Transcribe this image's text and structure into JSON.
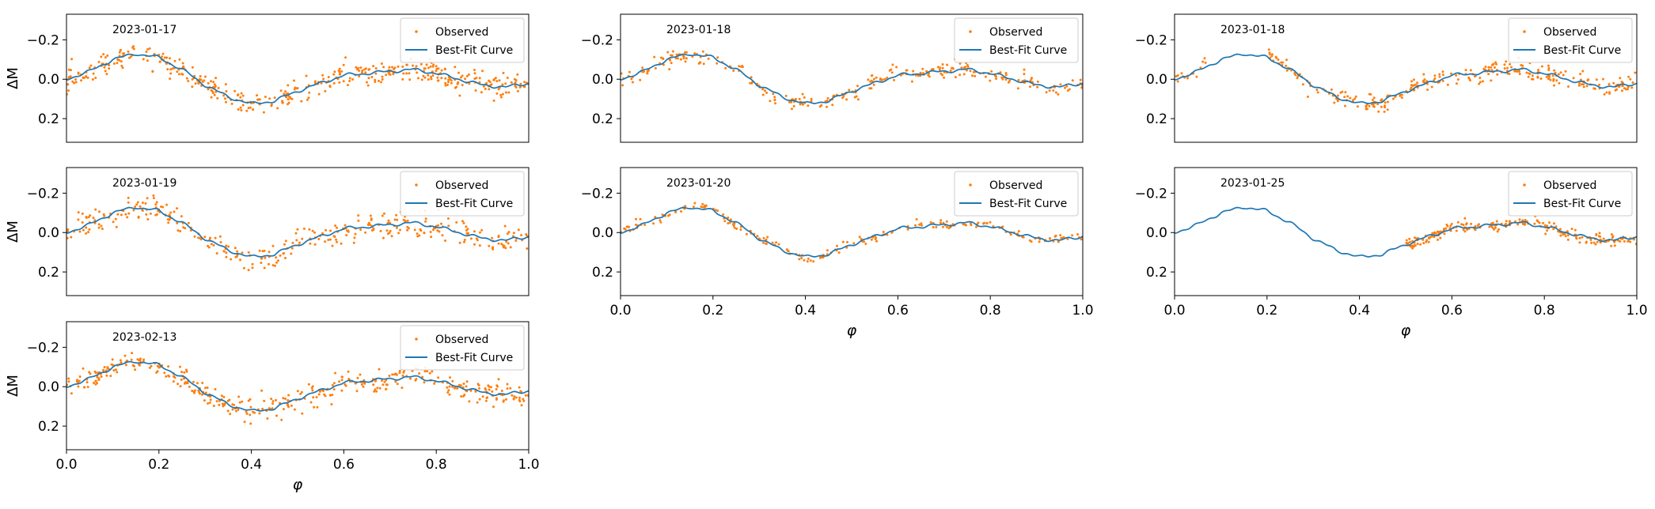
{
  "chart_data": [
    {
      "type": "scatter",
      "annotation": "2023-01-17",
      "xlabel": "",
      "ylabel": "ΔM",
      "xlim": [
        0,
        1
      ],
      "ylim": [
        0.32,
        -0.33
      ],
      "yticks": [
        "−0.2",
        "0.0",
        "0.2"
      ],
      "xticks": [],
      "legend": {
        "placement": "upper-right",
        "entries": [
          "Observed",
          "Best-Fit Curve"
        ]
      },
      "coverage": [
        0.0,
        1.0
      ],
      "noise": 0.028,
      "n_points": 430,
      "x_label_visible": false
    },
    {
      "type": "scatter",
      "annotation": "2023-01-18",
      "xlabel": "",
      "ylabel": "",
      "xlim": [
        0,
        1
      ],
      "ylim": [
        0.32,
        -0.33
      ],
      "yticks": [
        "−0.2",
        "0.0",
        "0.2"
      ],
      "xticks": [],
      "legend": {
        "placement": "upper-right",
        "entries": [
          "Observed",
          "Best-Fit Curve"
        ]
      },
      "coverage": [
        0.0,
        1.0
      ],
      "noise": 0.02,
      "n_points": 280
    },
    {
      "type": "scatter",
      "annotation": "2023-01-18",
      "xlabel": "",
      "ylabel": "",
      "xlim": [
        0,
        1
      ],
      "ylim": [
        0.32,
        -0.33
      ],
      "yticks": [
        "−0.2",
        "0.0",
        "0.2"
      ],
      "xticks": [],
      "legend": {
        "placement": "upper-right",
        "entries": [
          "Observed",
          "Best-Fit Curve"
        ]
      },
      "coverage": [
        0.0,
        0.07,
        0.2,
        1.0
      ],
      "noise": 0.022,
      "n_points": 300
    },
    {
      "type": "scatter",
      "annotation": "2023-01-19",
      "xlabel": "",
      "ylabel": "ΔM",
      "xlim": [
        0,
        1
      ],
      "ylim": [
        0.32,
        -0.33
      ],
      "yticks": [
        "−0.2",
        "0.0",
        "0.2"
      ],
      "xticks": [],
      "legend": {
        "placement": "upper-right",
        "entries": [
          "Observed",
          "Best-Fit Curve"
        ]
      },
      "coverage": [
        0.0,
        1.0
      ],
      "noise": 0.032,
      "n_points": 330
    },
    {
      "type": "scatter",
      "annotation": "2023-01-20",
      "xlabel": "φ",
      "ylabel": "",
      "xlim": [
        0,
        1
      ],
      "ylim": [
        0.32,
        -0.33
      ],
      "yticks": [
        "−0.2",
        "0.0",
        "0.2"
      ],
      "xticks": [
        "0.0",
        "0.2",
        "0.4",
        "0.6",
        "0.8",
        "1.0"
      ],
      "legend": {
        "placement": "upper-right",
        "entries": [
          "Observed",
          "Best-Fit Curve"
        ]
      },
      "coverage": [
        0.0,
        1.0
      ],
      "noise": 0.01,
      "n_points": 200
    },
    {
      "type": "scatter",
      "annotation": "2023-01-25",
      "xlabel": "φ",
      "ylabel": "",
      "xlim": [
        0,
        1
      ],
      "ylim": [
        0.32,
        -0.33
      ],
      "yticks": [
        "−0.2",
        "0.0",
        "0.2"
      ],
      "xticks": [
        "0.0",
        "0.2",
        "0.4",
        "0.6",
        "0.8",
        "1.0"
      ],
      "legend": {
        "placement": "upper-right",
        "entries": [
          "Observed",
          "Best-Fit Curve"
        ]
      },
      "coverage": [
        0.5,
        1.0
      ],
      "noise": 0.015,
      "n_points": 210
    },
    {
      "type": "scatter",
      "annotation": "2023-02-13",
      "xlabel": "φ",
      "ylabel": "ΔM",
      "xlim": [
        0,
        1
      ],
      "ylim": [
        0.32,
        -0.33
      ],
      "yticks": [
        "−0.2",
        "0.0",
        "0.2"
      ],
      "xticks": [
        "0.0",
        "0.2",
        "0.4",
        "0.6",
        "0.8",
        "1.0"
      ],
      "legend": {
        "placement": "upper-right",
        "entries": [
          "Observed",
          "Best-Fit Curve"
        ]
      },
      "coverage": [
        0.0,
        1.0
      ],
      "noise": 0.03,
      "n_points": 400
    }
  ],
  "best_fit_curve": {
    "phase": [
      0.0,
      0.05,
      0.1,
      0.15,
      0.2,
      0.25,
      0.3,
      0.35,
      0.4,
      0.45,
      0.5,
      0.55,
      0.6,
      0.65,
      0.7,
      0.75,
      0.8,
      0.85,
      0.9,
      0.95,
      1.0
    ],
    "delta_m": [
      0.0,
      -0.04,
      -0.1,
      -0.13,
      -0.11,
      -0.05,
      0.03,
      0.09,
      0.125,
      0.11,
      0.06,
      0.02,
      -0.02,
      -0.03,
      -0.04,
      -0.05,
      -0.03,
      0.0,
      0.03,
      0.04,
      0.02
    ]
  },
  "colors": {
    "observed": "#ff7f0e",
    "curve": "#1f77b4",
    "axis": "#000000",
    "legend_border": "#cccccc"
  }
}
